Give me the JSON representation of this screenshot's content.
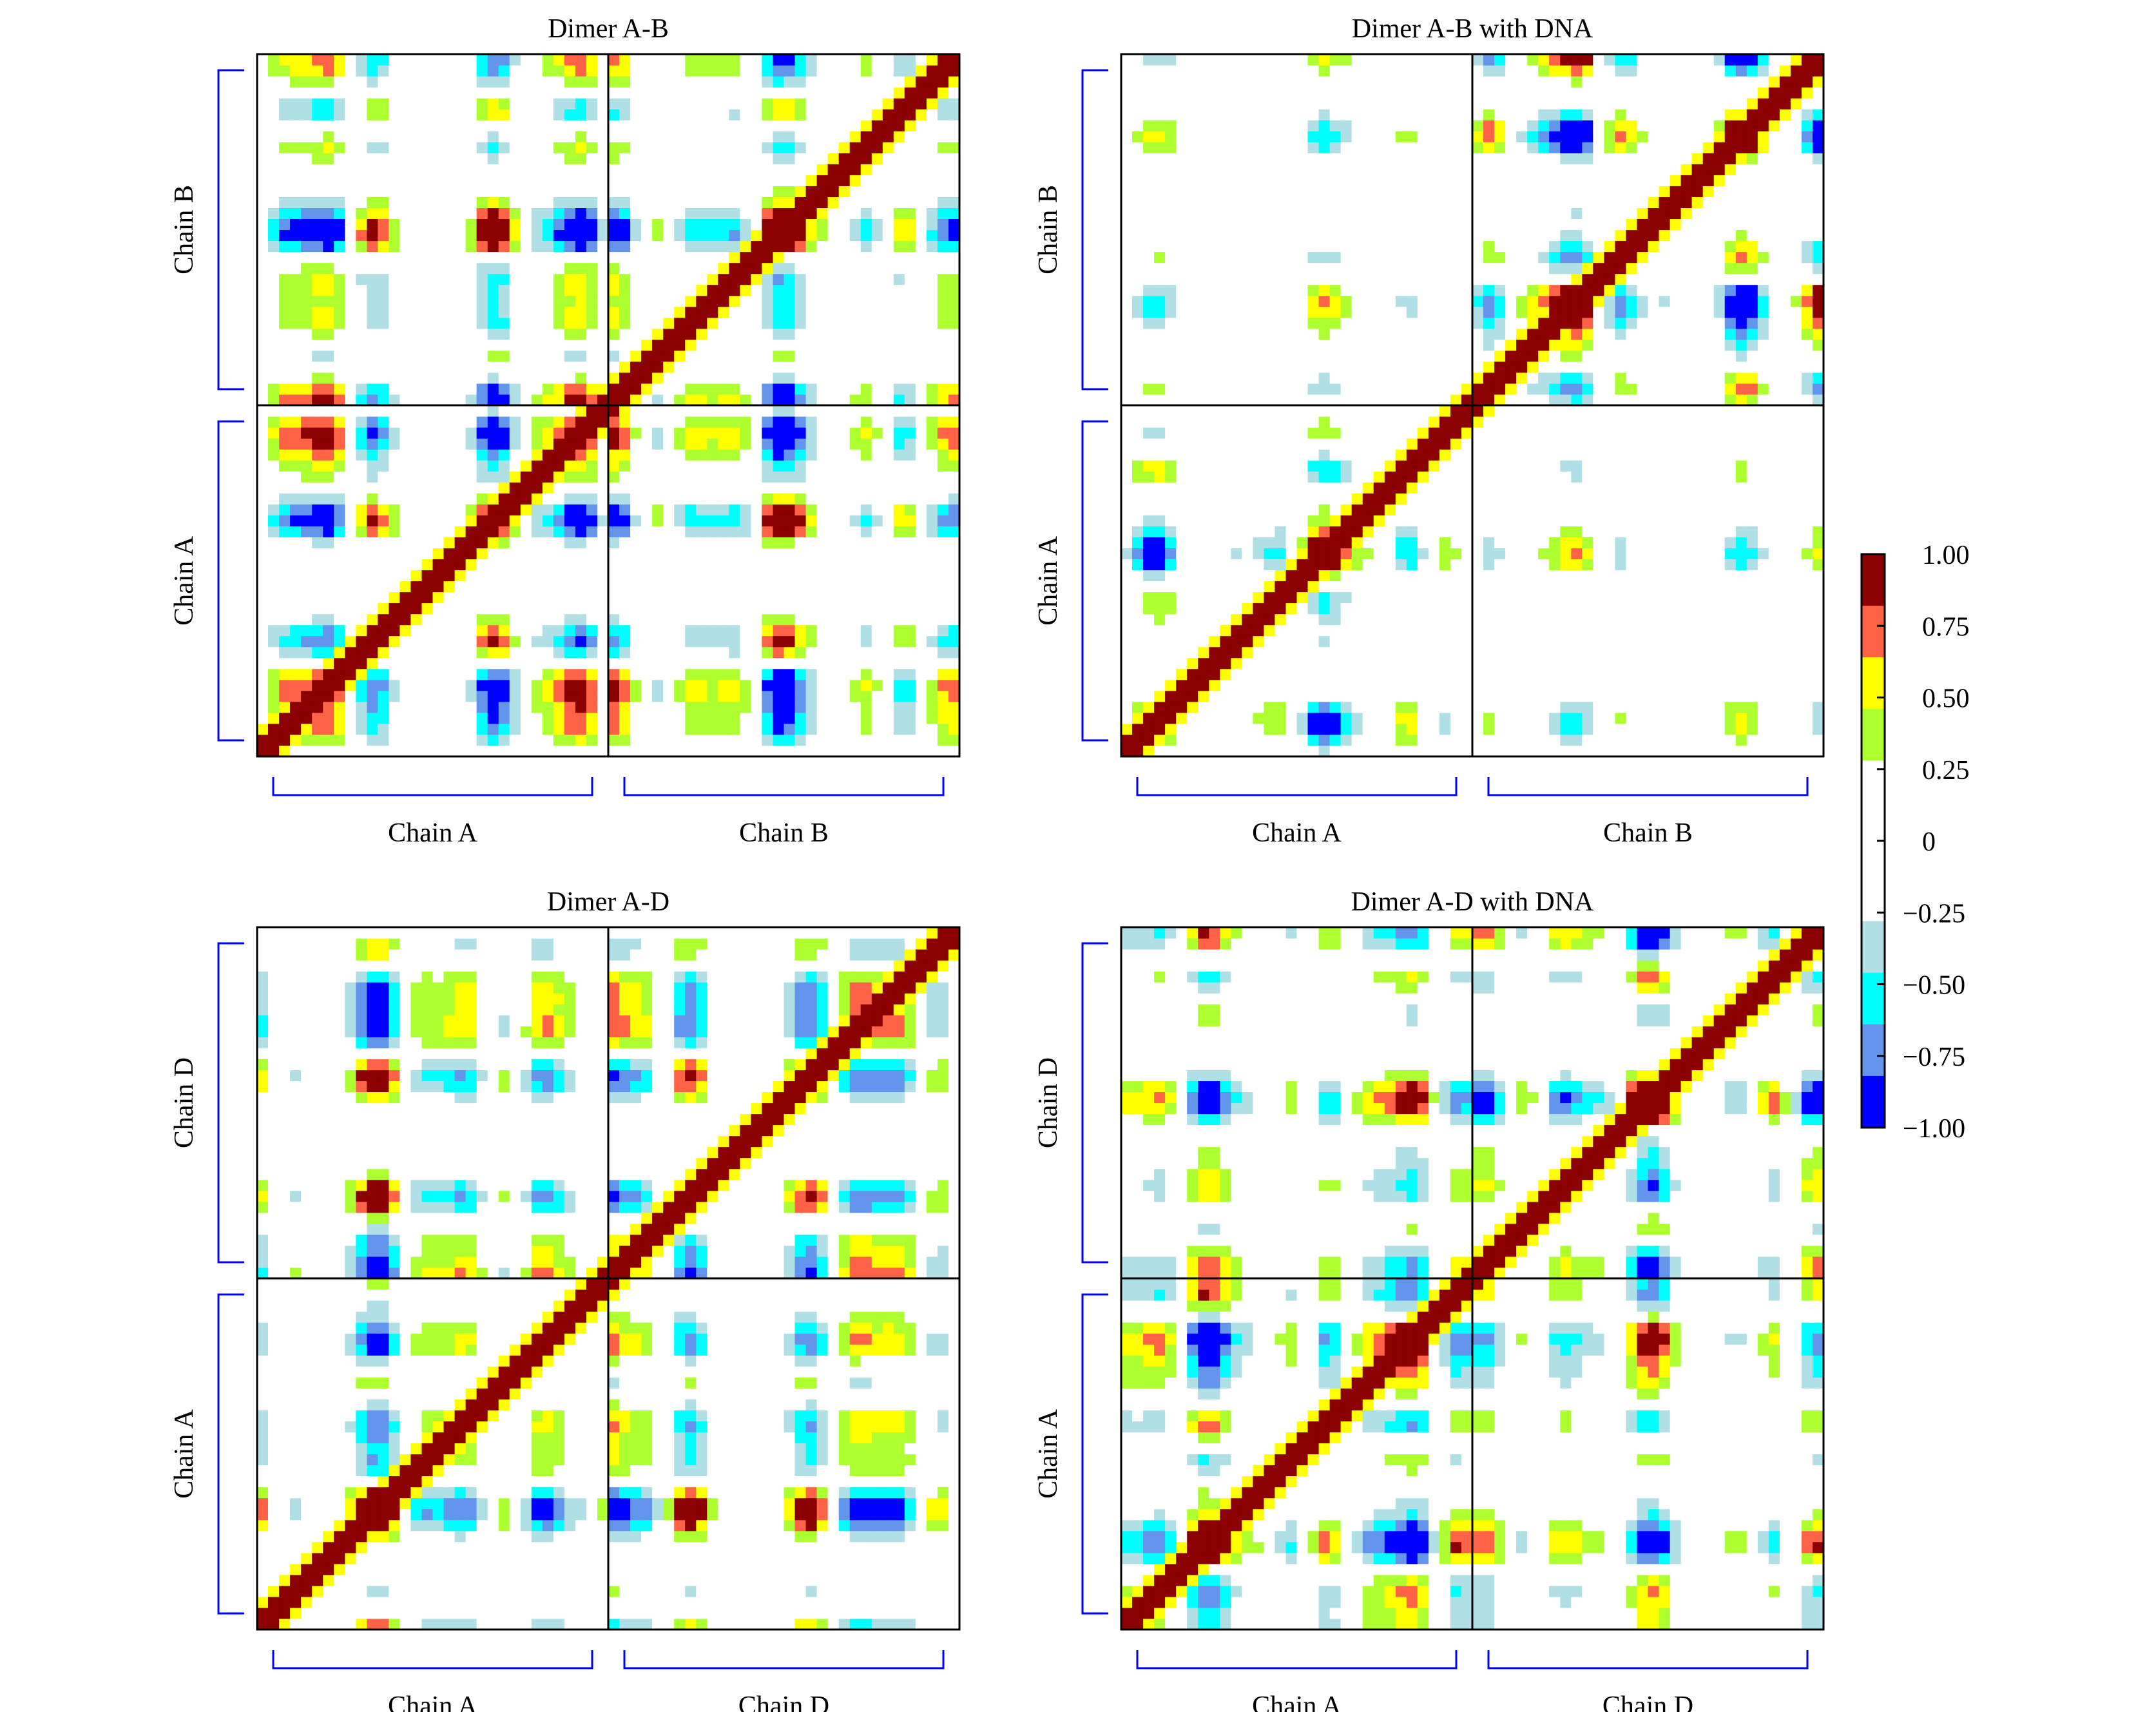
{
  "chart_data": [
    {
      "type": "heatmap",
      "title": "Dimer A-B",
      "xlabel_segments": [
        "Chain A",
        "Chain B"
      ],
      "ylabel_segments": [
        "Chain A",
        "Chain B"
      ],
      "diagonal_value": 1.0,
      "symmetric": true,
      "interchain_coupling": "strong"
    },
    {
      "type": "heatmap",
      "title": "Dimer A-B with DNA",
      "xlabel_segments": [
        "Chain A",
        "Chain B"
      ],
      "ylabel_segments": [
        "Chain A",
        "Chain B"
      ],
      "diagonal_value": 1.0,
      "symmetric": true,
      "interchain_coupling": "weak"
    },
    {
      "type": "heatmap",
      "title": "Dimer A-D",
      "xlabel_segments": [
        "Chain A",
        "Chain D"
      ],
      "ylabel_segments": [
        "Chain A",
        "Chain D"
      ],
      "diagonal_value": 1.0,
      "symmetric": true,
      "interchain_coupling": "strong"
    },
    {
      "type": "heatmap",
      "title": "Dimer A-D with DNA",
      "xlabel_segments": [
        "Chain A",
        "Chain D"
      ],
      "ylabel_segments": [
        "Chain A",
        "Chain D"
      ],
      "diagonal_value": 1.0,
      "symmetric": true,
      "interchain_coupling": "moderate"
    }
  ],
  "colorbar": {
    "range": [
      -1,
      1
    ],
    "tick_labels": [
      "1.00",
      "0.75",
      "0.50",
      "0.25",
      "0",
      "−0.25",
      "−0.50",
      "−0.75",
      "−1.00"
    ],
    "tick_values": [
      1,
      0.75,
      0.5,
      0.25,
      0,
      -0.25,
      -0.5,
      -0.75,
      -1
    ],
    "levels": [
      {
        "min": 0.82,
        "max": 1.0,
        "color": "#8B0000"
      },
      {
        "min": 0.64,
        "max": 0.82,
        "color": "#FF6347"
      },
      {
        "min": 0.46,
        "max": 0.64,
        "color": "#FFFF00"
      },
      {
        "min": 0.28,
        "max": 0.46,
        "color": "#ADFF2F"
      },
      {
        "min": -0.28,
        "max": 0.28,
        "color": "#FFFFFF"
      },
      {
        "min": -0.46,
        "max": -0.28,
        "color": "#B0E0E6"
      },
      {
        "min": -0.64,
        "max": -0.46,
        "color": "#00FFFF"
      },
      {
        "min": -0.82,
        "max": -0.64,
        "color": "#6495ED"
      },
      {
        "min": -1.0,
        "max": -0.82,
        "color": "#0000FF"
      }
    ]
  },
  "bracket_color": "#0000FF"
}
